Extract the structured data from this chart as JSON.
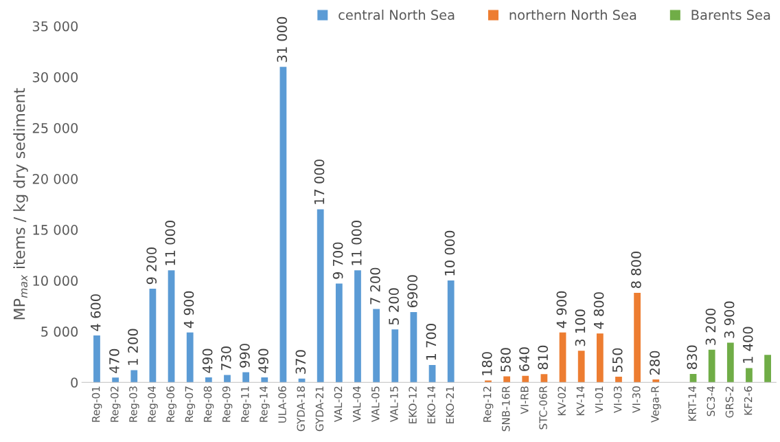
{
  "chart_data": {
    "type": "bar",
    "ylabel": "MP$_{max}$ items / kg dry sediment",
    "categories": [
      "Reg-01",
      "Reg-02",
      "Reg-03",
      "Reg-04",
      "Reg-06",
      "Reg-07",
      "Reg-08",
      "Reg-09",
      "Reg-11",
      "Reg-14",
      "ULA-06",
      "GYDA-18",
      "GYDA-21",
      "VAL-02",
      "VAL-04",
      "VAL-05",
      "VAL-15",
      "EKO-12",
      "EKO-14",
      "EKO-21",
      null,
      "Reg-12",
      "SNB-16R",
      "VI-RB",
      "STC-06R",
      "KV-02",
      "KV-14",
      "VI-01",
      "VI-03",
      "VI-30",
      "Vega-R",
      null,
      "KRT-14",
      "SC3-4",
      "GRS-2",
      "KF2-6",
      null
    ],
    "series": [
      {
        "name": "central North Sea",
        "color": "#5b9bd5",
        "values": [
          4600,
          470,
          1200,
          9200,
          11000,
          4900,
          490,
          730,
          990,
          490,
          31000,
          370,
          17000,
          9700,
          11000,
          7200,
          5200,
          6900,
          1700,
          10000,
          null,
          null,
          null,
          null,
          null,
          null,
          null,
          null,
          null,
          null,
          null,
          null,
          null,
          null,
          null,
          null,
          null
        ],
        "value_labels": [
          "4 600",
          "470",
          "1 200",
          "9 200",
          "11 000",
          "4 900",
          "490",
          "730",
          "990",
          "490",
          "31 000",
          "370",
          "17 000",
          "9 700",
          "11 000",
          "7 200",
          "5 200",
          "6900",
          "1 700",
          "10 000",
          null,
          null,
          null,
          null,
          null,
          null,
          null,
          null,
          null,
          null,
          null,
          null,
          null,
          null,
          null,
          null,
          null
        ]
      },
      {
        "name": "northern North Sea",
        "color": "#ed7d31",
        "values": [
          null,
          null,
          null,
          null,
          null,
          null,
          null,
          null,
          null,
          null,
          null,
          null,
          null,
          null,
          null,
          null,
          null,
          null,
          null,
          null,
          null,
          180,
          580,
          640,
          810,
          4900,
          3100,
          4800,
          550,
          8800,
          280,
          null,
          null,
          null,
          null,
          null,
          null
        ],
        "value_labels": [
          null,
          null,
          null,
          null,
          null,
          null,
          null,
          null,
          null,
          null,
          null,
          null,
          null,
          null,
          null,
          null,
          null,
          null,
          null,
          null,
          null,
          "180",
          "580",
          "640",
          "810",
          "4 900",
          "3 100",
          "4 800",
          "550",
          "8 800",
          "280",
          null,
          null,
          null,
          null,
          null,
          null
        ]
      },
      {
        "name": "Barents Sea",
        "color": "#70ad47",
        "values": [
          null,
          null,
          null,
          null,
          null,
          null,
          null,
          null,
          null,
          null,
          null,
          null,
          null,
          null,
          null,
          null,
          null,
          null,
          null,
          null,
          null,
          null,
          null,
          null,
          null,
          null,
          null,
          null,
          null,
          null,
          null,
          null,
          830,
          3200,
          3900,
          1400,
          2700
        ],
        "value_labels": [
          null,
          null,
          null,
          null,
          null,
          null,
          null,
          null,
          null,
          null,
          null,
          null,
          null,
          null,
          null,
          null,
          null,
          null,
          null,
          null,
          null,
          null,
          null,
          null,
          null,
          null,
          null,
          null,
          null,
          null,
          null,
          null,
          "830",
          "3 200",
          "3 900",
          "1 400",
          null
        ]
      }
    ],
    "ylim": [
      0,
      35000
    ],
    "yticks": [
      0,
      {
        "value": 5000,
        "label": "5 000"
      },
      {
        "value": 10000,
        "label": "10 000"
      },
      {
        "value": 15000,
        "label": "15 000"
      },
      {
        "value": 20000,
        "label": "20 000"
      },
      {
        "value": 25000,
        "label": "25 000"
      },
      {
        "value": 30000,
        "label": "30 000"
      },
      {
        "value": 35000,
        "label": "35 000"
      }
    ],
    "legend": "top right",
    "grid": false
  }
}
